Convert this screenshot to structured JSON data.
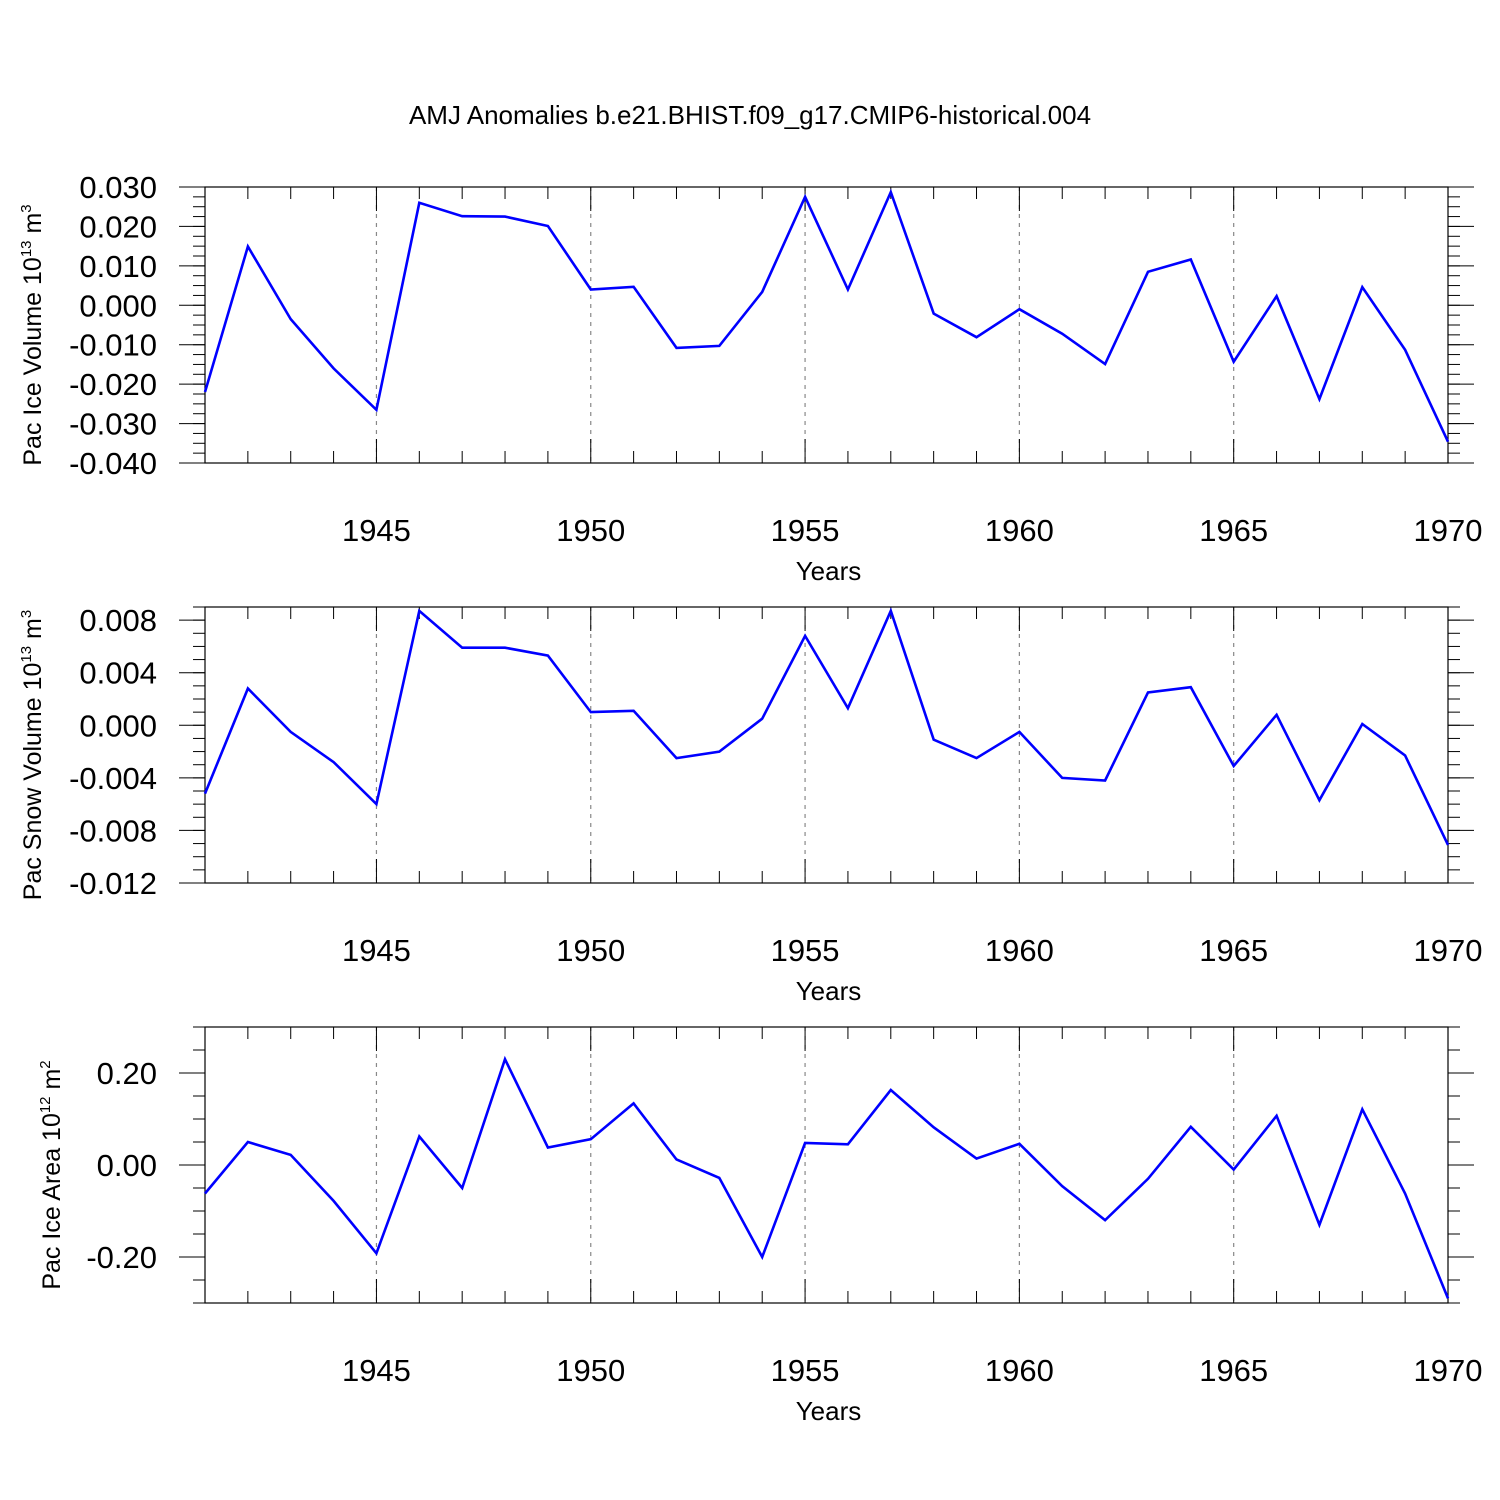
{
  "title": "AMJ Anomalies b.e21.BHIST.f09_g17.CMIP6-historical.004",
  "colors": {
    "line": "#0000ff",
    "axis": "#000000",
    "grid": "#888888"
  },
  "chart_data": [
    {
      "type": "line",
      "name": "pac-ice-volume",
      "ylabel": "Pac Ice Volume 10",
      "ylabel_exp": "13",
      "ylabel_unit": " m",
      "ylabel_unit_exp": "3",
      "xlabel": "Years",
      "xlim": [
        1941,
        1970
      ],
      "ylim": [
        -0.04,
        0.03
      ],
      "yticks": [
        -0.04,
        -0.03,
        -0.02,
        -0.01,
        0.0,
        0.01,
        0.02,
        0.03
      ],
      "ytick_labels": [
        "-0.040",
        "-0.030",
        "-0.020",
        "-0.010",
        "0.000",
        "0.010",
        "0.020",
        "0.030"
      ],
      "yminor_step": 0.0025,
      "xticks": [
        1945,
        1950,
        1955,
        1960,
        1965,
        1970
      ],
      "xtick_labels": [
        "1945",
        "1950",
        "1955",
        "1960",
        "1965",
        "1970"
      ],
      "x": [
        1941,
        1942,
        1943,
        1944,
        1945,
        1946,
        1947,
        1948,
        1949,
        1950,
        1951,
        1952,
        1953,
        1954,
        1955,
        1956,
        1957,
        1958,
        1959,
        1960,
        1961,
        1962,
        1963,
        1964,
        1965,
        1966,
        1967,
        1968,
        1969,
        1970
      ],
      "series": [
        {
          "name": "Pac Ice Volume",
          "values": [
            -0.022,
            0.0149,
            -0.0035,
            -0.016,
            -0.0265,
            0.026,
            0.0226,
            0.0225,
            0.0201,
            0.004,
            0.0047,
            -0.0108,
            -0.0103,
            0.0034,
            0.0275,
            0.004,
            0.0287,
            -0.0021,
            -0.0081,
            -0.001,
            -0.0072,
            -0.0149,
            0.0085,
            0.0116,
            -0.0143,
            0.0023,
            -0.0238,
            0.0046,
            -0.0113,
            -0.0346
          ]
        }
      ]
    },
    {
      "type": "line",
      "name": "pac-snow-volume",
      "ylabel": "Pac Snow Volume 10",
      "ylabel_exp": "13",
      "ylabel_unit": " m",
      "ylabel_unit_exp": "3",
      "xlabel": "Years",
      "xlim": [
        1941,
        1970
      ],
      "ylim": [
        -0.012,
        0.009
      ],
      "yticks": [
        -0.012,
        -0.008,
        -0.004,
        0.0,
        0.004,
        0.008
      ],
      "ytick_labels": [
        "-0.012",
        "-0.008",
        "-0.004",
        "0.000",
        "0.004",
        "0.008"
      ],
      "yminor_step": 0.001,
      "xticks": [
        1945,
        1950,
        1955,
        1960,
        1965,
        1970
      ],
      "xtick_labels": [
        "1945",
        "1950",
        "1955",
        "1960",
        "1965",
        "1970"
      ],
      "x": [
        1941,
        1942,
        1943,
        1944,
        1945,
        1946,
        1947,
        1948,
        1949,
        1950,
        1951,
        1952,
        1953,
        1954,
        1955,
        1956,
        1957,
        1958,
        1959,
        1960,
        1961,
        1962,
        1963,
        1964,
        1965,
        1966,
        1967,
        1968,
        1969,
        1970
      ],
      "series": [
        {
          "name": "Pac Snow Volume",
          "values": [
            -0.0052,
            0.0028,
            -0.0005,
            -0.0028,
            -0.006,
            0.0087,
            0.0059,
            0.0059,
            0.0053,
            0.001,
            0.0011,
            -0.0025,
            -0.002,
            0.0005,
            0.0068,
            0.0013,
            0.0087,
            -0.0011,
            -0.0025,
            -0.0005,
            -0.004,
            -0.0042,
            0.0025,
            0.0029,
            -0.0031,
            0.0008,
            -0.0057,
            0.0001,
            -0.0023,
            -0.0091
          ]
        }
      ]
    },
    {
      "type": "line",
      "name": "pac-ice-area",
      "ylabel": "Pac Ice Area 10",
      "ylabel_exp": "12",
      "ylabel_unit": " m",
      "ylabel_unit_exp": "2",
      "xlabel": "Years",
      "xlim": [
        1941,
        1970
      ],
      "ylim": [
        -0.3,
        0.3
      ],
      "yticks": [
        -0.2,
        0.0,
        0.2
      ],
      "ytick_labels": [
        "-0.20",
        "0.00",
        "0.20"
      ],
      "yminor_step": 0.05,
      "xticks": [
        1945,
        1950,
        1955,
        1960,
        1965,
        1970
      ],
      "xtick_labels": [
        "1945",
        "1950",
        "1955",
        "1960",
        "1965",
        "1970"
      ],
      "x": [
        1941,
        1942,
        1943,
        1944,
        1945,
        1946,
        1947,
        1948,
        1949,
        1950,
        1951,
        1952,
        1953,
        1954,
        1955,
        1956,
        1957,
        1958,
        1959,
        1960,
        1961,
        1962,
        1963,
        1964,
        1965,
        1966,
        1967,
        1968,
        1969,
        1970
      ],
      "series": [
        {
          "name": "Pac Ice Area",
          "values": [
            -0.062,
            0.05,
            0.022,
            -0.078,
            -0.192,
            0.062,
            -0.05,
            0.23,
            0.038,
            0.056,
            0.134,
            0.012,
            -0.028,
            -0.2,
            0.048,
            0.045,
            0.163,
            0.082,
            0.014,
            0.046,
            -0.046,
            -0.12,
            -0.03,
            0.083,
            -0.01,
            0.107,
            -0.13,
            0.121,
            -0.062,
            -0.29
          ]
        }
      ]
    }
  ]
}
